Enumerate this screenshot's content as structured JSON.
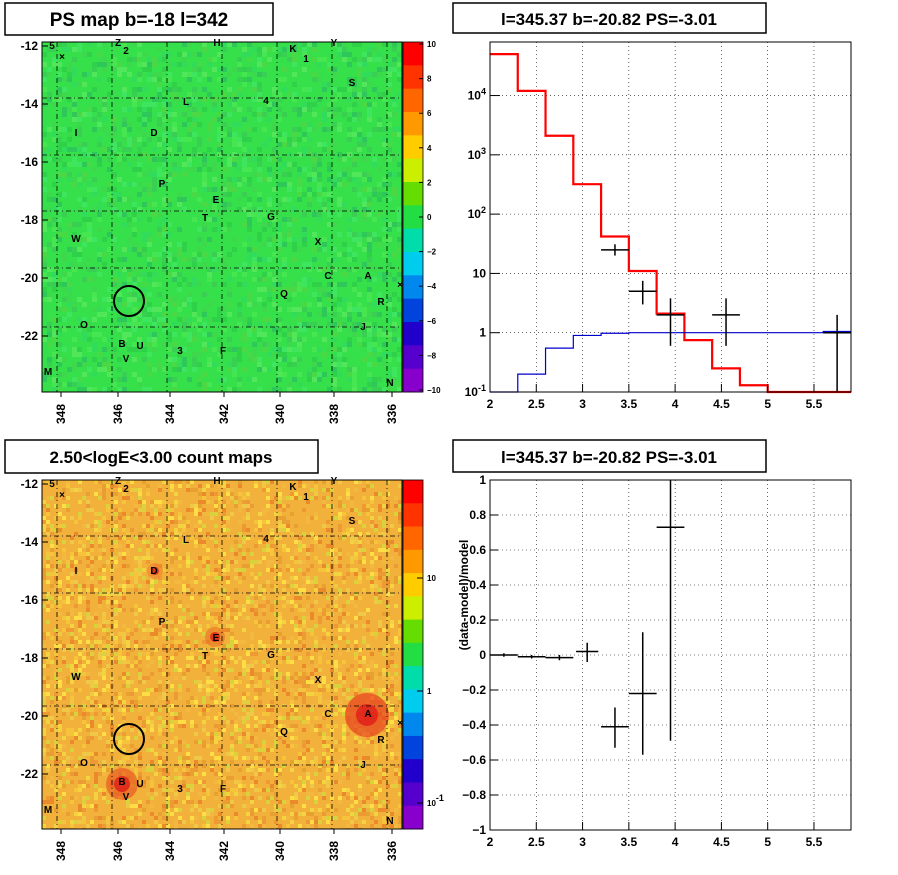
{
  "chart_data": [
    {
      "type": "heatmap",
      "panel": "map1",
      "title": "PS map b=-18 l=342",
      "xticks": [
        "348",
        "346",
        "344",
        "342",
        "340",
        "338",
        "336"
      ],
      "yticks": [
        "-12",
        "-14",
        "-16",
        "-18",
        "-20",
        "-22"
      ],
      "colorbar": {
        "ticks": [
          "10",
          "8",
          "6",
          "4",
          "2",
          "0",
          "−2",
          "−4",
          "−6",
          "−8",
          "−10"
        ],
        "scale": "linear",
        "range": [
          -10,
          10
        ]
      },
      "labels": [
        "5",
        "×",
        "Z",
        "2",
        "H",
        "K",
        "1",
        "Y",
        "S",
        "L",
        "4",
        "I",
        "D",
        "P",
        "E",
        "T",
        "G",
        "W",
        "X",
        "C",
        "A",
        "Q",
        "R",
        "O",
        "J",
        "B",
        "U",
        "V",
        "3",
        "F",
        "M",
        "N",
        "×"
      ],
      "circle": true,
      "colors": {
        "background": "#36e04a"
      }
    },
    {
      "type": "line",
      "panel": "spec1",
      "title": "l=345.37 b=-20.82 PS=-3.01",
      "xlim": [
        2,
        5.9
      ],
      "ylim": [
        0.1,
        80000
      ],
      "yscale": "log",
      "xticks": [
        "2",
        "2.5",
        "3",
        "3.5",
        "4",
        "4.5",
        "5",
        "5.5"
      ],
      "yticks": [
        "10^-1",
        "1",
        "10",
        "10^2",
        "10^3",
        "10^4"
      ],
      "grid": true,
      "series": [
        {
          "color": "#ff0000",
          "step_edges": [
            2,
            2.3,
            2.6,
            2.9,
            3.2,
            3.5,
            3.8,
            4.1,
            4.4,
            4.7,
            5.0,
            5.3,
            5.6,
            5.9
          ],
          "values": [
            50000,
            12000,
            2100,
            320,
            42,
            11,
            2.1,
            0.75,
            0.25,
            0.13,
            0.1,
            0.1,
            0.1
          ]
        },
        {
          "color": "#0000cc",
          "step_edges": [
            2,
            2.3,
            2.6,
            2.9,
            3.2,
            3.5,
            3.8,
            4.1,
            4.4,
            4.7,
            5.0,
            5.3,
            5.6,
            5.9
          ],
          "values": [
            0.1,
            0.2,
            0.55,
            0.9,
            0.98,
            1.0,
            1.0,
            1.0,
            1.0,
            1.0,
            1.0,
            1.0,
            1.05
          ]
        },
        {
          "color": "#000000",
          "points": [
            {
              "x": 3.35,
              "xerr": 0.15,
              "y": 25,
              "ylo": 20,
              "yhi": 31
            },
            {
              "x": 3.65,
              "xerr": 0.15,
              "y": 5,
              "ylo": 3,
              "yhi": 7.5
            },
            {
              "x": 3.95,
              "xerr": 0.15,
              "y": 2,
              "ylo": 0.6,
              "yhi": 3.8
            },
            {
              "x": 4.55,
              "xerr": 0.15,
              "y": 2,
              "ylo": 0.6,
              "yhi": 3.8
            },
            {
              "x": 5.75,
              "xerr": 0.15,
              "y": 1,
              "ylo": 0.1,
              "yhi": 2.0
            }
          ]
        }
      ]
    },
    {
      "type": "heatmap",
      "panel": "map2",
      "title": "2.50<logE<3.00 count maps",
      "xticks": [
        "348",
        "346",
        "344",
        "342",
        "340",
        "338",
        "336"
      ],
      "yticks": [
        "-12",
        "-14",
        "-16",
        "-18",
        "-20",
        "-22"
      ],
      "colorbar": {
        "ticks": [
          "10",
          "1",
          "10^-1"
        ],
        "scale": "log"
      },
      "labels": [
        "5",
        "×",
        "Z",
        "2",
        "H",
        "K",
        "1",
        "Y",
        "S",
        "L",
        "4",
        "I",
        "D",
        "P",
        "E",
        "T",
        "G",
        "W",
        "X",
        "C",
        "A",
        "Q",
        "R",
        "O",
        "J",
        "B",
        "U",
        "V",
        "3",
        "F",
        "M",
        "N",
        "×"
      ],
      "circle": true,
      "colors": {
        "background": "#f2b13a"
      }
    },
    {
      "type": "scatter",
      "panel": "resid",
      "title": "l=345.37 b=-20.82 PS=-3.01",
      "ylabel": "(data-model)/model",
      "xlim": [
        2,
        5.9
      ],
      "ylim": [
        -1,
        1
      ],
      "xticks": [
        "2",
        "2.5",
        "3",
        "3.5",
        "4",
        "4.5",
        "5",
        "5.5"
      ],
      "yticks": [
        "1",
        "0.8",
        "0.6",
        "0.4",
        "0.2",
        "0",
        "−0.2",
        "−0.4",
        "−0.6",
        "−0.8",
        "−1"
      ],
      "grid": true,
      "points": [
        {
          "x": 2.15,
          "xerr": 0.15,
          "y": 0.0,
          "ylo": -0.01,
          "yhi": 0.01
        },
        {
          "x": 2.45,
          "xerr": 0.15,
          "y": -0.01,
          "ylo": -0.02,
          "yhi": 0.0
        },
        {
          "x": 2.75,
          "xerr": 0.15,
          "y": -0.015,
          "ylo": -0.03,
          "yhi": 0.0
        },
        {
          "x": 3.05,
          "xerr": 0.12,
          "y": 0.02,
          "ylo": -0.04,
          "yhi": 0.07
        },
        {
          "x": 3.35,
          "xerr": 0.15,
          "y": -0.41,
          "ylo": -0.53,
          "yhi": -0.3
        },
        {
          "x": 3.65,
          "xerr": 0.15,
          "y": -0.22,
          "ylo": -0.57,
          "yhi": 0.13
        },
        {
          "x": 3.95,
          "xerr": 0.15,
          "y": 0.73,
          "ylo": -0.49,
          "yhi": 1.0
        }
      ]
    }
  ]
}
